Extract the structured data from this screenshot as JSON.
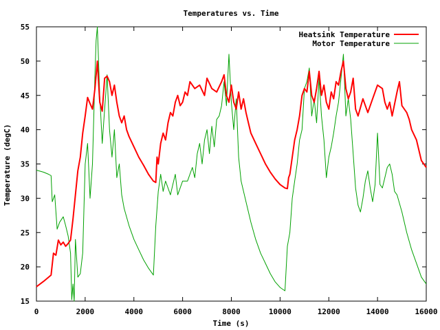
{
  "chart_data": {
    "type": "line",
    "title": "Temperatures vs. Time",
    "xlabel": "Time (s)",
    "ylabel": "Temperature (degC)",
    "xlim": [
      0,
      16000
    ],
    "ylim": [
      15,
      55
    ],
    "xticks": [
      0,
      2000,
      4000,
      6000,
      8000,
      10000,
      12000,
      14000,
      16000
    ],
    "yticks": [
      15,
      20,
      25,
      30,
      35,
      40,
      45,
      50,
      55
    ],
    "grid": false,
    "legend_position": "top-right",
    "series": [
      {
        "name": "Heatsink Temperature",
        "color": "#ff0000",
        "points": [
          [
            0,
            17.1
          ],
          [
            300,
            17.9
          ],
          [
            600,
            18.8
          ],
          [
            700,
            22.0
          ],
          [
            800,
            21.7
          ],
          [
            900,
            23.9
          ],
          [
            1000,
            23.2
          ],
          [
            1100,
            23.6
          ],
          [
            1200,
            23.0
          ],
          [
            1300,
            23.4
          ],
          [
            1400,
            23.9
          ],
          [
            1500,
            27.0
          ],
          [
            1600,
            30.5
          ],
          [
            1700,
            34.0
          ],
          [
            1800,
            36.0
          ],
          [
            1900,
            39.5
          ],
          [
            2000,
            42.0
          ],
          [
            2100,
            44.7
          ],
          [
            2200,
            43.8
          ],
          [
            2300,
            43.0
          ],
          [
            2400,
            46.0
          ],
          [
            2500,
            50.0
          ],
          [
            2600,
            44.0
          ],
          [
            2700,
            42.7
          ],
          [
            2800,
            47.5
          ],
          [
            2900,
            47.8
          ],
          [
            3000,
            47.0
          ],
          [
            3100,
            45.0
          ],
          [
            3200,
            46.5
          ],
          [
            3300,
            44.0
          ],
          [
            3400,
            42.0
          ],
          [
            3500,
            41.0
          ],
          [
            3600,
            42.0
          ],
          [
            3700,
            40.0
          ],
          [
            3800,
            39.0
          ],
          [
            4000,
            37.5
          ],
          [
            4200,
            36.0
          ],
          [
            4400,
            34.8
          ],
          [
            4600,
            33.5
          ],
          [
            4800,
            32.5
          ],
          [
            4900,
            32.3
          ],
          [
            4950,
            36.0
          ],
          [
            5000,
            35.0
          ],
          [
            5100,
            38.0
          ],
          [
            5200,
            39.5
          ],
          [
            5300,
            38.5
          ],
          [
            5400,
            41.0
          ],
          [
            5500,
            42.5
          ],
          [
            5600,
            42.0
          ],
          [
            5700,
            44.0
          ],
          [
            5800,
            45.0
          ],
          [
            5900,
            43.5
          ],
          [
            6000,
            44.0
          ],
          [
            6100,
            45.5
          ],
          [
            6200,
            45.0
          ],
          [
            6300,
            47.0
          ],
          [
            6500,
            46.0
          ],
          [
            6700,
            46.5
          ],
          [
            6900,
            45.0
          ],
          [
            7000,
            47.5
          ],
          [
            7200,
            46.0
          ],
          [
            7400,
            45.5
          ],
          [
            7600,
            47.0
          ],
          [
            7700,
            48.0
          ],
          [
            7800,
            45.0
          ],
          [
            7900,
            44.0
          ],
          [
            8000,
            46.5
          ],
          [
            8100,
            44.0
          ],
          [
            8200,
            43.0
          ],
          [
            8300,
            45.5
          ],
          [
            8400,
            43.0
          ],
          [
            8500,
            44.5
          ],
          [
            8600,
            42.5
          ],
          [
            8700,
            41.0
          ],
          [
            8800,
            39.5
          ],
          [
            9000,
            38.0
          ],
          [
            9200,
            36.5
          ],
          [
            9400,
            35.0
          ],
          [
            9600,
            33.8
          ],
          [
            9800,
            32.8
          ],
          [
            10000,
            32.0
          ],
          [
            10200,
            31.5
          ],
          [
            10300,
            31.4
          ],
          [
            10350,
            33.0
          ],
          [
            10400,
            33.5
          ],
          [
            10500,
            36.0
          ],
          [
            10600,
            38.5
          ],
          [
            10700,
            40.0
          ],
          [
            10800,
            42.0
          ],
          [
            10900,
            45.0
          ],
          [
            11000,
            46.0
          ],
          [
            11100,
            45.5
          ],
          [
            11200,
            48.5
          ],
          [
            11300,
            45.0
          ],
          [
            11400,
            44.0
          ],
          [
            11500,
            46.0
          ],
          [
            11600,
            48.5
          ],
          [
            11700,
            45.0
          ],
          [
            11800,
            46.5
          ],
          [
            11900,
            44.0
          ],
          [
            12000,
            43.0
          ],
          [
            12100,
            45.5
          ],
          [
            12200,
            44.5
          ],
          [
            12300,
            47.0
          ],
          [
            12400,
            46.5
          ],
          [
            12500,
            48.5
          ],
          [
            12600,
            50.0
          ],
          [
            12700,
            46.0
          ],
          [
            12800,
            44.5
          ],
          [
            12900,
            45.5
          ],
          [
            13000,
            47.5
          ],
          [
            13100,
            43.0
          ],
          [
            13200,
            42.0
          ],
          [
            13400,
            44.5
          ],
          [
            13600,
            42.5
          ],
          [
            13800,
            44.5
          ],
          [
            14000,
            46.5
          ],
          [
            14200,
            46.0
          ],
          [
            14300,
            44.0
          ],
          [
            14400,
            43.0
          ],
          [
            14500,
            44.0
          ],
          [
            14600,
            42.0
          ],
          [
            14800,
            45.5
          ],
          [
            14900,
            47.0
          ],
          [
            15000,
            43.5
          ],
          [
            15200,
            42.5
          ],
          [
            15300,
            41.5
          ],
          [
            15400,
            40.0
          ],
          [
            15600,
            38.5
          ],
          [
            15800,
            35.5
          ],
          [
            16000,
            34.5
          ]
        ]
      },
      {
        "name": "Motor Temperature",
        "color": "#00a000",
        "points": [
          [
            0,
            34.1
          ],
          [
            300,
            33.8
          ],
          [
            500,
            33.5
          ],
          [
            600,
            33.3
          ],
          [
            650,
            29.5
          ],
          [
            750,
            30.5
          ],
          [
            850,
            25.5
          ],
          [
            950,
            26.5
          ],
          [
            1100,
            27.3
          ],
          [
            1200,
            26.0
          ],
          [
            1300,
            24.5
          ],
          [
            1400,
            22.0
          ],
          [
            1450,
            15.2
          ],
          [
            1500,
            17.5
          ],
          [
            1550,
            15.0
          ],
          [
            1600,
            24.0
          ],
          [
            1700,
            18.5
          ],
          [
            1800,
            19.0
          ],
          [
            1900,
            22.0
          ],
          [
            2000,
            35.0
          ],
          [
            2100,
            38.0
          ],
          [
            2200,
            30.0
          ],
          [
            2300,
            35.0
          ],
          [
            2400,
            48.0
          ],
          [
            2450,
            53.0
          ],
          [
            2500,
            55.0
          ],
          [
            2600,
            45.0
          ],
          [
            2700,
            38.0
          ],
          [
            2800,
            43.0
          ],
          [
            2900,
            48.0
          ],
          [
            3000,
            40.0
          ],
          [
            3100,
            36.0
          ],
          [
            3200,
            40.0
          ],
          [
            3300,
            33.0
          ],
          [
            3400,
            35.0
          ],
          [
            3500,
            30.5
          ],
          [
            3600,
            28.5
          ],
          [
            3800,
            26.0
          ],
          [
            4000,
            24.0
          ],
          [
            4200,
            22.5
          ],
          [
            4400,
            21.0
          ],
          [
            4600,
            19.8
          ],
          [
            4800,
            18.8
          ],
          [
            4900,
            26.0
          ],
          [
            5000,
            31.0
          ],
          [
            5100,
            33.5
          ],
          [
            5200,
            31.0
          ],
          [
            5300,
            32.5
          ],
          [
            5400,
            31.5
          ],
          [
            5500,
            30.5
          ],
          [
            5600,
            32.0
          ],
          [
            5700,
            33.5
          ],
          [
            5800,
            30.5
          ],
          [
            6000,
            32.5
          ],
          [
            6200,
            32.5
          ],
          [
            6400,
            34.5
          ],
          [
            6500,
            33.0
          ],
          [
            6600,
            36.5
          ],
          [
            6700,
            38.0
          ],
          [
            6800,
            35.0
          ],
          [
            6900,
            38.5
          ],
          [
            7000,
            40.0
          ],
          [
            7100,
            36.5
          ],
          [
            7200,
            40.5
          ],
          [
            7300,
            37.5
          ],
          [
            7400,
            41.5
          ],
          [
            7500,
            42.0
          ],
          [
            7600,
            43.5
          ],
          [
            7700,
            47.0
          ],
          [
            7800,
            43.5
          ],
          [
            7900,
            51.0
          ],
          [
            8000,
            44.0
          ],
          [
            8100,
            40.0
          ],
          [
            8200,
            44.5
          ],
          [
            8300,
            36.0
          ],
          [
            8400,
            32.5
          ],
          [
            8600,
            29.5
          ],
          [
            8800,
            26.5
          ],
          [
            9000,
            24.0
          ],
          [
            9200,
            22.0
          ],
          [
            9400,
            20.5
          ],
          [
            9600,
            19.0
          ],
          [
            9800,
            17.8
          ],
          [
            10000,
            17.0
          ],
          [
            10200,
            16.5
          ],
          [
            10300,
            23.0
          ],
          [
            10400,
            25.0
          ],
          [
            10500,
            30.0
          ],
          [
            10600,
            32.5
          ],
          [
            10700,
            35.0
          ],
          [
            10800,
            38.5
          ],
          [
            10900,
            40.0
          ],
          [
            11000,
            46.0
          ],
          [
            11100,
            47.0
          ],
          [
            11200,
            49.0
          ],
          [
            11300,
            42.0
          ],
          [
            11400,
            44.5
          ],
          [
            11500,
            41.0
          ],
          [
            11600,
            47.5
          ],
          [
            11700,
            42.0
          ],
          [
            11800,
            38.5
          ],
          [
            11900,
            33.0
          ],
          [
            12000,
            36.0
          ],
          [
            12100,
            37.5
          ],
          [
            12200,
            39.5
          ],
          [
            12300,
            42.0
          ],
          [
            12400,
            44.0
          ],
          [
            12500,
            47.5
          ],
          [
            12600,
            51.0
          ],
          [
            12700,
            42.0
          ],
          [
            12800,
            44.5
          ],
          [
            12900,
            41.5
          ],
          [
            13000,
            36.5
          ],
          [
            13100,
            31.5
          ],
          [
            13200,
            29.0
          ],
          [
            13300,
            28.0
          ],
          [
            13400,
            30.0
          ],
          [
            13500,
            32.5
          ],
          [
            13600,
            34.0
          ],
          [
            13700,
            31.5
          ],
          [
            13800,
            29.5
          ],
          [
            13900,
            32.0
          ],
          [
            14000,
            39.5
          ],
          [
            14100,
            32.0
          ],
          [
            14200,
            31.5
          ],
          [
            14300,
            33.0
          ],
          [
            14400,
            34.5
          ],
          [
            14500,
            35.0
          ],
          [
            14600,
            33.5
          ],
          [
            14700,
            31.0
          ],
          [
            14800,
            30.5
          ],
          [
            15000,
            28.0
          ],
          [
            15200,
            25.0
          ],
          [
            15400,
            22.5
          ],
          [
            15600,
            20.5
          ],
          [
            15800,
            18.5
          ],
          [
            16000,
            17.5
          ]
        ]
      }
    ]
  }
}
